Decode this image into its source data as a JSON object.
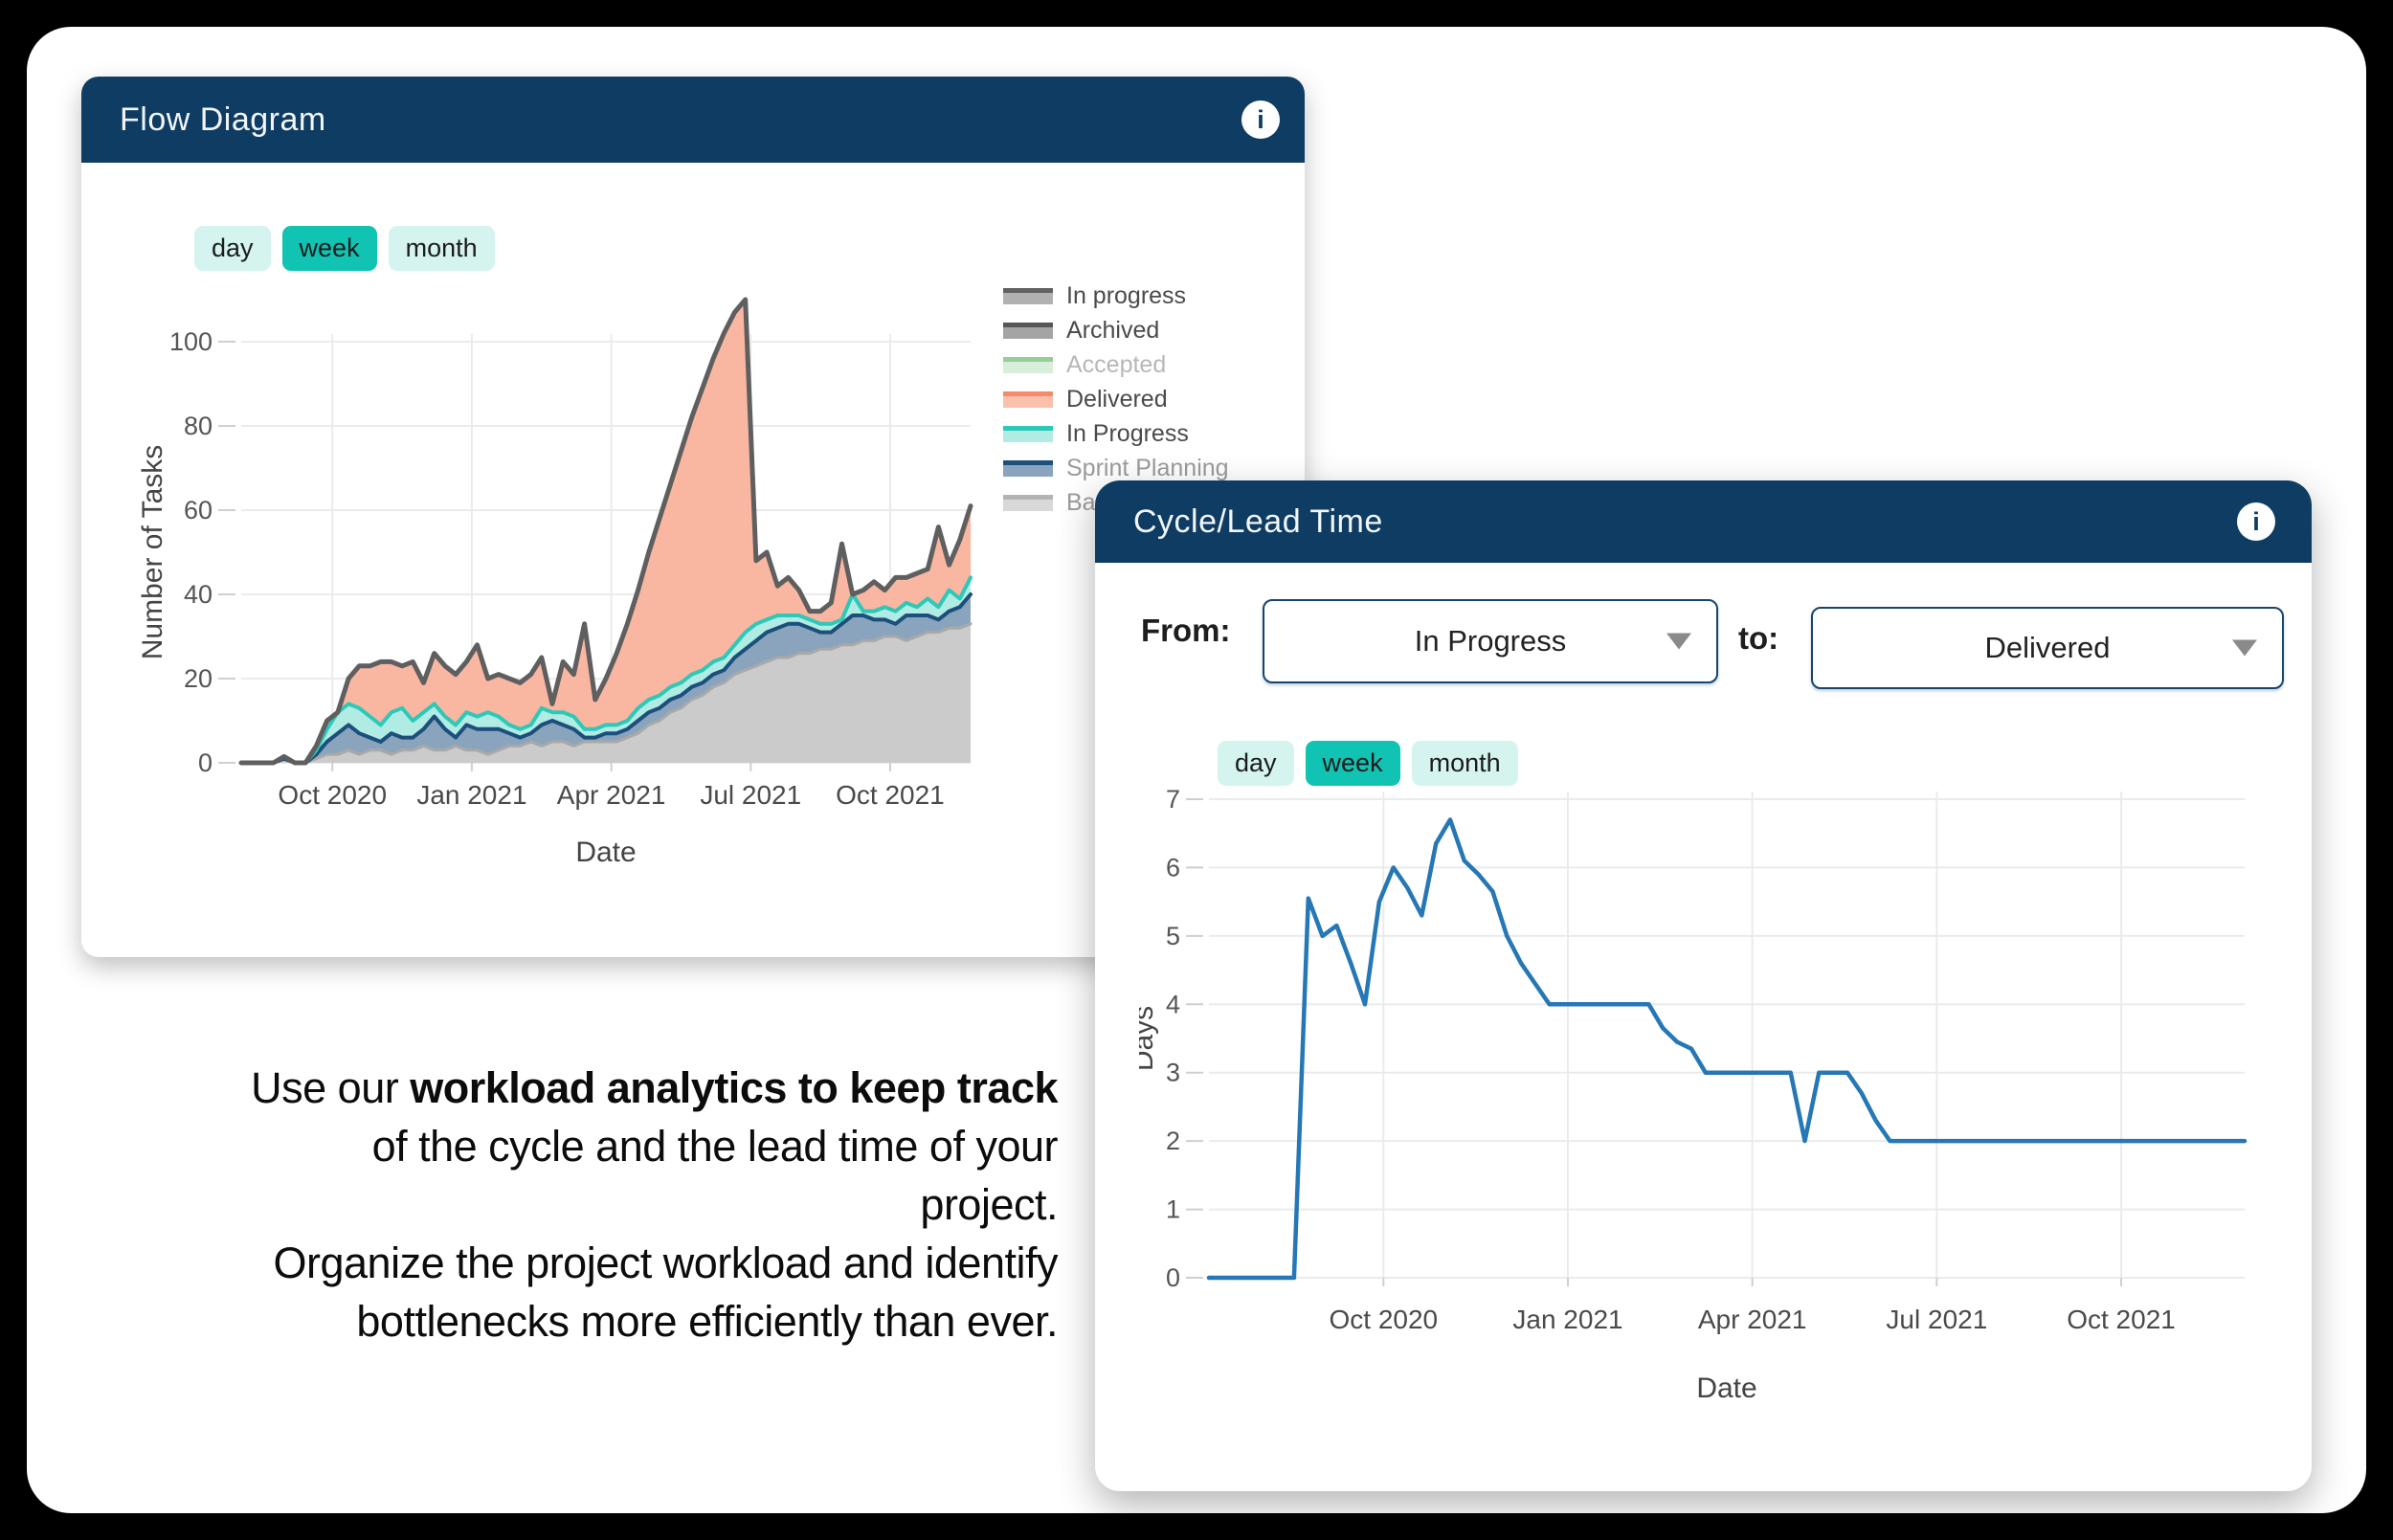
{
  "flow_panel": {
    "title": "Flow Diagram",
    "info_icon": "i",
    "range": {
      "options": [
        "day",
        "week",
        "month"
      ],
      "selected": "week"
    },
    "button_colors": {
      "selected_bg": "#11c3b2",
      "normal_bg": "#d5f4ef"
    },
    "header_color": "#0e3c62",
    "legend": [
      {
        "label": "In progress",
        "line": "#616161",
        "fill": "#b1b1b1",
        "text_color": "#4a4a4a"
      },
      {
        "label": "Archived",
        "line": "#575757",
        "fill": "#a4a4a4",
        "text_color": "#4a4a4a"
      },
      {
        "label": "Accepted",
        "line": "#95cf98",
        "fill": "#d9eeda",
        "text_color": "#b7b7b7"
      },
      {
        "label": "Delivered",
        "line": "#f58b6c",
        "fill": "#fbc0ac",
        "text_color": "#4a4a4a"
      },
      {
        "label": "In Progress",
        "line": "#2ec8b9",
        "fill": "#b0ebe4",
        "text_color": "#4a4a4a"
      },
      {
        "label": "Sprint Planning",
        "line": "#1c4f7c",
        "fill": "#8ba4bd",
        "text_color": "#9b9b9b"
      },
      {
        "label": "Backlog",
        "line": "#b3b3b3",
        "fill": "#d8d8d8",
        "text_color": "#9b9b9b"
      }
    ]
  },
  "cycle_panel": {
    "title": "Cycle/Lead Time",
    "info_icon": "i",
    "from_label": "From:",
    "to_label": "to:",
    "from_value": "In Progress",
    "to_value": "Delivered",
    "range": {
      "options": [
        "day",
        "week",
        "month"
      ],
      "selected": "week"
    }
  },
  "tagline": {
    "l1a": "Use our ",
    "l1b": "workload analytics to keep track",
    "l2": "of the cycle and the lead time of your",
    "l3": "project.",
    "l4": "Organize the project workload and identify",
    "l5": "bottlenecks more efficiently than ever."
  },
  "chart_data": [
    {
      "type": "area",
      "title": "Flow Diagram",
      "xlabel": "Date",
      "ylabel": "Number of Tasks",
      "ylim": [
        0,
        112
      ],
      "yticks": [
        0,
        20,
        40,
        60,
        80,
        100
      ],
      "x_tick_positions": [
        8.5,
        21.5,
        34.5,
        47.5,
        60.5
      ],
      "x_tick_labels": [
        "Oct 2020",
        "Jan 2021",
        "Apr 2021",
        "Jul 2021",
        "Oct 2021"
      ],
      "grid": true,
      "legend_position": "right",
      "note": "weekly points, values are cumulative stack tops",
      "stack_boundaries": [
        {
          "name": "Backlog",
          "line": "#a9a9a9",
          "fill": "#cbcbcb",
          "line_width": 3,
          "values": [
            0,
            0,
            0,
            0,
            1,
            0,
            0,
            1,
            2,
            2,
            3,
            2,
            3,
            3,
            2,
            3,
            3,
            4,
            3,
            3,
            4,
            3,
            3,
            2,
            3,
            4,
            4,
            5,
            4,
            5,
            5,
            4,
            5,
            5,
            5,
            5,
            6,
            7,
            9,
            10,
            12,
            13,
            15,
            16,
            18,
            19,
            21,
            22,
            23,
            24,
            25,
            25,
            26,
            26,
            27,
            27,
            28,
            28,
            29,
            29,
            30,
            30,
            29,
            30,
            31,
            31,
            32,
            32,
            33
          ]
        },
        {
          "name": "Sprint Planning",
          "line": "#1c4f7c",
          "fill": "#8ba4bd",
          "line_width": 4,
          "values": [
            0,
            0,
            0,
            0,
            1,
            0,
            0,
            2,
            5,
            7,
            9,
            7,
            6,
            5,
            7,
            6,
            6,
            8,
            11,
            8,
            6,
            9,
            8,
            8,
            8,
            7,
            6,
            7,
            9,
            10,
            9,
            8,
            6,
            6,
            7,
            7,
            8,
            10,
            12,
            13,
            15,
            16,
            18,
            19,
            21,
            22,
            25,
            27,
            29,
            31,
            32,
            33,
            33,
            32,
            31,
            31,
            33,
            35,
            35,
            34,
            34,
            33,
            35,
            35,
            35,
            34,
            36,
            37,
            40
          ]
        },
        {
          "name": "In Progress",
          "line": "#2ec8b9",
          "fill": "#b0ebe4",
          "line_width": 4,
          "values": [
            0,
            0,
            0,
            0,
            1.5,
            0,
            0,
            3,
            8,
            12,
            14,
            13,
            11,
            9,
            12,
            13,
            10,
            12,
            14,
            11,
            9,
            12,
            11,
            12,
            11,
            9,
            8,
            9,
            13,
            12,
            12,
            11,
            8,
            8,
            9,
            9,
            10,
            13,
            15,
            16,
            18,
            19,
            21,
            22,
            24,
            25,
            28,
            31,
            33,
            34,
            35,
            35,
            35,
            34,
            33,
            33,
            34,
            40,
            36,
            36,
            37,
            36,
            38,
            37,
            39,
            37,
            41,
            39,
            44
          ]
        },
        {
          "name": "Delivered",
          "line": "#5f5f5f",
          "fill": "#f9b7a2",
          "line_width": 5,
          "values": [
            0,
            0,
            0,
            0,
            1.5,
            0,
            0,
            4,
            10,
            12,
            20,
            23,
            23,
            24,
            24,
            23,
            24,
            19,
            26,
            23,
            21,
            24,
            28,
            20,
            21,
            20,
            19,
            21,
            25,
            14,
            24,
            21,
            33,
            15,
            20,
            26,
            33,
            41,
            50,
            58,
            66,
            74,
            82,
            89,
            96,
            102,
            107,
            110,
            48,
            50,
            42,
            44,
            41,
            36,
            36,
            38,
            52,
            40,
            41,
            43,
            41,
            44,
            44,
            45,
            46,
            56,
            47,
            53,
            61
          ]
        }
      ]
    },
    {
      "type": "line",
      "title": "Cycle/Lead Time",
      "xlabel": "Date",
      "ylabel": "Days",
      "ylim": [
        0,
        7
      ],
      "yticks": [
        0,
        1,
        2,
        3,
        4,
        5,
        6,
        7
      ],
      "x_tick_positions": [
        12.3,
        25.3,
        38.3,
        51.3,
        64.3
      ],
      "x_tick_labels": [
        "Oct 2020",
        "Jan 2021",
        "Apr 2021",
        "Jul 2021",
        "Oct 2021"
      ],
      "grid": true,
      "line_color": "#2577b5",
      "line_width": 4.5,
      "note": "weekly cycle time from In Progress to Delivered",
      "values": [
        0,
        0,
        0,
        0,
        0,
        0,
        0,
        5.55,
        5,
        5.15,
        4.6,
        4,
        5.5,
        6,
        5.7,
        5.3,
        6.35,
        6.7,
        6.1,
        5.9,
        5.65,
        5,
        4.6,
        4.3,
        4,
        4,
        4,
        4,
        4,
        4,
        4,
        4,
        3.65,
        3.45,
        3.35,
        3,
        3,
        3,
        3,
        3,
        3,
        3,
        2,
        3,
        3,
        3,
        2.7,
        2.3,
        2,
        2,
        2,
        2,
        2,
        2,
        2,
        2,
        2,
        2,
        2,
        2,
        2,
        2,
        2,
        2,
        2,
        2,
        2,
        2,
        2,
        2,
        2,
        2,
        2,
        2
      ]
    }
  ]
}
